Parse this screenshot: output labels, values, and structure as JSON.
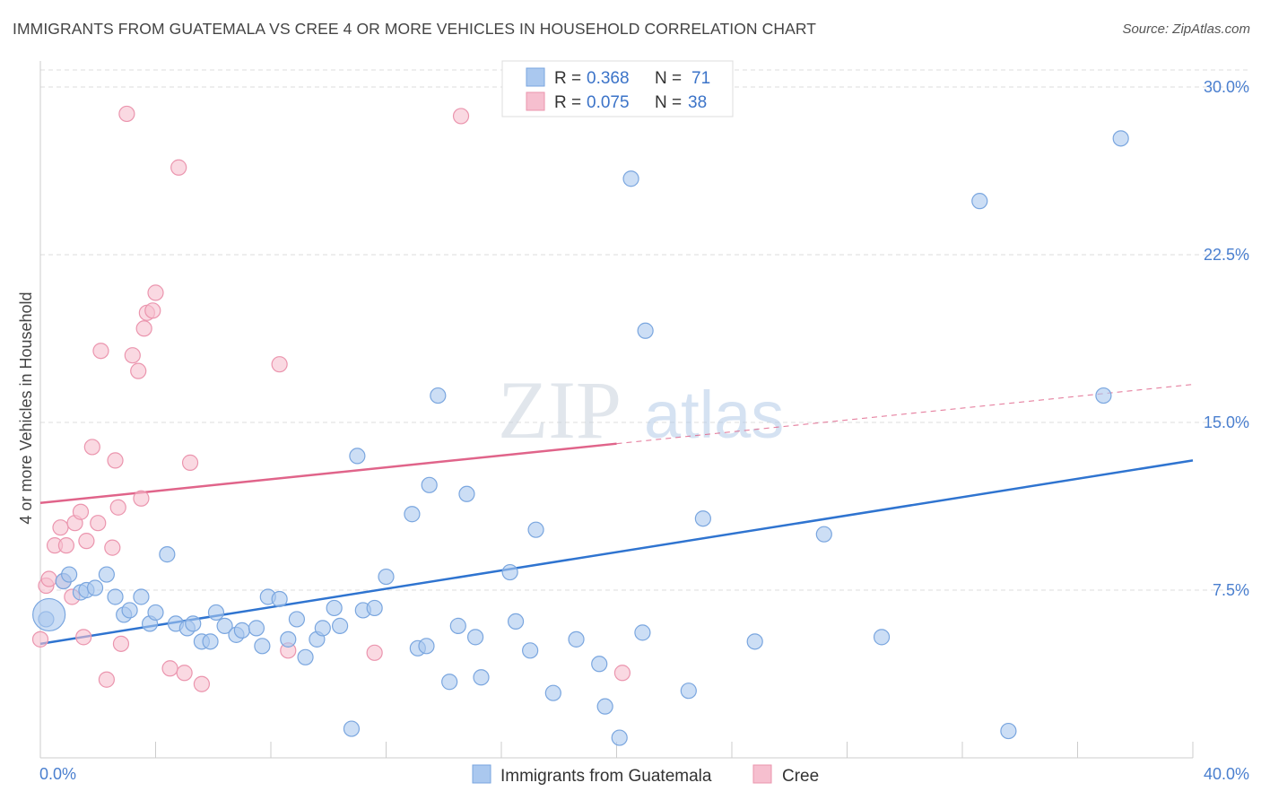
{
  "title": "IMMIGRANTS FROM GUATEMALA VS CREE 4 OR MORE VEHICLES IN HOUSEHOLD CORRELATION CHART",
  "source": "Source: ZipAtlas.com",
  "watermark": {
    "zip": "ZIP",
    "atlas": "atlas"
  },
  "colors": {
    "blue_fill": "#aac8ef",
    "blue_stroke": "#7aa6df",
    "blue_line": "#2f74d0",
    "pink_fill": "#f6bfcf",
    "pink_stroke": "#eb95ae",
    "pink_line": "#e0648a",
    "axis_text": "#4a7fcf",
    "grid": "#dddddd"
  },
  "legend": {
    "r_label": "R =",
    "n_label": "N =",
    "rows": [
      {
        "r": "0.368",
        "n": "71"
      },
      {
        "r": "0.075",
        "n": "38"
      }
    ]
  },
  "bottom_legend": [
    "Immigrants from Guatemala",
    "Cree"
  ],
  "chart_data": {
    "type": "scatter",
    "xlabel": "",
    "ylabel": "4 or more Vehicles in Household",
    "xlim": [
      0,
      40
    ],
    "ylim": [
      0,
      30
    ],
    "x_tick_labels": [
      "0.0%",
      "40.0%"
    ],
    "y_ticks": [
      7.5,
      15.0,
      22.5,
      30.0
    ],
    "y_tick_labels": [
      "7.5%",
      "15.0%",
      "22.5%",
      "30.0%"
    ],
    "grid": "horizontal dashed",
    "series": [
      {
        "name": "Immigrants from Guatemala",
        "trend": {
          "x": [
            0,
            40
          ],
          "y": [
            5.1,
            13.3
          ],
          "dashed_from": null
        },
        "points": [
          [
            0.2,
            6.2
          ],
          [
            0.8,
            7.9
          ],
          [
            1.0,
            8.2
          ],
          [
            1.4,
            7.4
          ],
          [
            1.6,
            7.5
          ],
          [
            1.9,
            7.6
          ],
          [
            2.3,
            8.2
          ],
          [
            2.6,
            7.2
          ],
          [
            2.9,
            6.4
          ],
          [
            3.1,
            6.6
          ],
          [
            3.5,
            7.2
          ],
          [
            3.8,
            6.0
          ],
          [
            4.0,
            6.5
          ],
          [
            4.4,
            9.1
          ],
          [
            4.7,
            6.0
          ],
          [
            5.1,
            5.8
          ],
          [
            5.3,
            6.0
          ],
          [
            5.6,
            5.2
          ],
          [
            5.9,
            5.2
          ],
          [
            6.1,
            6.5
          ],
          [
            6.4,
            5.9
          ],
          [
            6.8,
            5.5
          ],
          [
            7.0,
            5.7
          ],
          [
            7.5,
            5.8
          ],
          [
            7.7,
            5.0
          ],
          [
            7.9,
            7.2
          ],
          [
            8.3,
            7.1
          ],
          [
            8.6,
            5.3
          ],
          [
            8.9,
            6.2
          ],
          [
            9.2,
            4.5
          ],
          [
            9.6,
            5.3
          ],
          [
            9.8,
            5.8
          ],
          [
            10.2,
            6.7
          ],
          [
            10.4,
            5.9
          ],
          [
            10.8,
            1.3
          ],
          [
            11.0,
            13.5
          ],
          [
            11.2,
            6.6
          ],
          [
            11.6,
            6.7
          ],
          [
            12.0,
            8.1
          ],
          [
            12.9,
            10.9
          ],
          [
            13.1,
            4.9
          ],
          [
            13.4,
            5.0
          ],
          [
            13.5,
            12.2
          ],
          [
            13.8,
            16.2
          ],
          [
            14.2,
            3.4
          ],
          [
            14.5,
            5.9
          ],
          [
            14.8,
            11.8
          ],
          [
            15.1,
            5.4
          ],
          [
            15.3,
            3.6
          ],
          [
            16.3,
            8.3
          ],
          [
            16.5,
            6.1
          ],
          [
            17.0,
            4.8
          ],
          [
            17.2,
            10.2
          ],
          [
            17.8,
            2.9
          ],
          [
            18.6,
            5.3
          ],
          [
            19.4,
            4.2
          ],
          [
            19.6,
            2.3
          ],
          [
            20.1,
            0.9
          ],
          [
            20.5,
            25.9
          ],
          [
            20.9,
            5.6
          ],
          [
            21.0,
            19.1
          ],
          [
            22.5,
            3.0
          ],
          [
            23.0,
            10.7
          ],
          [
            24.8,
            5.2
          ],
          [
            27.2,
            10.0
          ],
          [
            29.2,
            5.4
          ],
          [
            32.6,
            24.9
          ],
          [
            33.6,
            1.2
          ],
          [
            36.9,
            16.2
          ],
          [
            37.5,
            27.7
          ],
          [
            0.3,
            6.4
          ]
        ]
      },
      {
        "name": "Cree",
        "trend": {
          "x": [
            0,
            40
          ],
          "y": [
            11.4,
            16.7
          ],
          "dashed_from": 20
        },
        "points": [
          [
            0.0,
            5.3
          ],
          [
            0.2,
            7.7
          ],
          [
            0.3,
            8.0
          ],
          [
            0.5,
            9.5
          ],
          [
            0.7,
            10.3
          ],
          [
            0.9,
            9.5
          ],
          [
            1.1,
            7.2
          ],
          [
            1.2,
            10.5
          ],
          [
            1.4,
            11.0
          ],
          [
            1.5,
            5.4
          ],
          [
            1.6,
            9.7
          ],
          [
            1.8,
            13.9
          ],
          [
            2.0,
            10.5
          ],
          [
            2.1,
            18.2
          ],
          [
            2.3,
            3.5
          ],
          [
            2.5,
            9.4
          ],
          [
            2.6,
            13.3
          ],
          [
            2.7,
            11.2
          ],
          [
            2.8,
            5.1
          ],
          [
            3.0,
            28.8
          ],
          [
            3.2,
            18.0
          ],
          [
            3.4,
            17.3
          ],
          [
            3.5,
            11.6
          ],
          [
            3.6,
            19.2
          ],
          [
            3.7,
            19.9
          ],
          [
            3.9,
            20.0
          ],
          [
            4.0,
            20.8
          ],
          [
            4.5,
            4.0
          ],
          [
            4.8,
            26.4
          ],
          [
            5.0,
            3.8
          ],
          [
            5.2,
            13.2
          ],
          [
            5.6,
            3.3
          ],
          [
            8.3,
            17.6
          ],
          [
            8.6,
            4.8
          ],
          [
            11.6,
            4.7
          ],
          [
            14.6,
            28.7
          ],
          [
            20.2,
            3.8
          ],
          [
            0.8,
            7.9
          ]
        ]
      }
    ]
  }
}
